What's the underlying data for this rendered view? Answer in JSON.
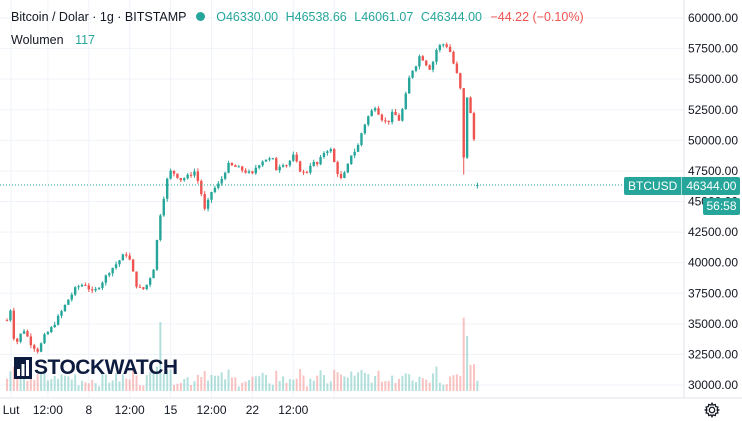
{
  "legend": {
    "title": "Bitcoin / Dolar · 1g · BITSTAMP",
    "open": "O46330.00",
    "high": "H46538.66",
    "low": "L46061.07",
    "close": "C46344.00",
    "change": "−44.22 (−0.10%)",
    "volume_label": "Wolumen",
    "volume_value": "117"
  },
  "price_badge": {
    "symbol": "BTCUSD",
    "price": "46344.00",
    "countdown": "56:58"
  },
  "logo": {
    "text": "STOCKWATCH"
  },
  "icons": {
    "settings": "gear-icon",
    "status": "green-dot-icon",
    "logo": "stockwatch-logo-icon"
  },
  "colors": {
    "up": "#26a69a",
    "down": "#ef5350",
    "last_price": "#26a69a"
  },
  "chart_data": {
    "type": "candlestick",
    "title": "Bitcoin / Dolar · 1g · BITSTAMP",
    "ylim": [
      29500,
      61000
    ],
    "y_ticks": [
      30000,
      32500,
      35000,
      37500,
      40000,
      42500,
      45000,
      47500,
      50000,
      52500,
      55000,
      57500,
      60000
    ],
    "y_tick_labels": [
      "30000.00",
      "32500.00",
      "35000.00",
      "37500.00",
      "40000.00",
      "42500.00",
      "45000.00",
      "47500.00",
      "50000.00",
      "52500.00",
      "55000.00",
      "57500.00",
      "60000.00"
    ],
    "x_ticks": [
      0.05,
      0.5,
      1,
      1.5,
      2,
      2.5,
      3,
      3.5,
      4
    ],
    "x_tick_labels": [
      "Lut",
      "12:00",
      "8",
      "12:00",
      "15",
      "12:00",
      "22",
      "12:00",
      ""
    ],
    "last_price": 46344,
    "grid": true,
    "price_path": [
      [
        0.0,
        35300
      ],
      [
        0.02,
        38500
      ],
      [
        0.06,
        34200
      ],
      [
        0.12,
        33500
      ],
      [
        0.2,
        34600
      ],
      [
        0.3,
        33300
      ],
      [
        0.38,
        32800
      ],
      [
        0.46,
        34000
      ],
      [
        0.55,
        34700
      ],
      [
        0.65,
        35800
      ],
      [
        0.75,
        37000
      ],
      [
        0.85,
        38000
      ],
      [
        0.95,
        38300
      ],
      [
        1.05,
        37500
      ],
      [
        1.15,
        38300
      ],
      [
        1.25,
        39300
      ],
      [
        1.35,
        40000
      ],
      [
        1.45,
        40800
      ],
      [
        1.5,
        40200
      ],
      [
        1.58,
        38200
      ],
      [
        1.65,
        37700
      ],
      [
        1.72,
        38300
      ],
      [
        1.8,
        39700
      ],
      [
        1.86,
        43500
      ],
      [
        1.92,
        45500
      ],
      [
        1.98,
        47500
      ],
      [
        2.05,
        47300
      ],
      [
        2.12,
        46800
      ],
      [
        2.2,
        47000
      ],
      [
        2.3,
        47500
      ],
      [
        2.37,
        45800
      ],
      [
        2.42,
        44200
      ],
      [
        2.5,
        45800
      ],
      [
        2.6,
        46500
      ],
      [
        2.7,
        48000
      ],
      [
        2.8,
        47800
      ],
      [
        2.9,
        47500
      ],
      [
        3.0,
        47200
      ],
      [
        3.05,
        47900
      ],
      [
        3.15,
        48500
      ],
      [
        3.25,
        48400
      ],
      [
        3.3,
        47500
      ],
      [
        3.35,
        48200
      ],
      [
        3.42,
        48000
      ],
      [
        3.5,
        48700
      ],
      [
        3.58,
        47600
      ],
      [
        3.65,
        47200
      ],
      [
        3.72,
        48200
      ],
      [
        3.8,
        48000
      ],
      [
        3.87,
        49000
      ],
      [
        3.95,
        49400
      ],
      [
        4.02,
        47700
      ],
      [
        4.08,
        46800
      ],
      [
        4.15,
        47500
      ],
      [
        4.2,
        48800
      ],
      [
        4.28,
        49300
      ],
      [
        4.35,
        51000
      ],
      [
        4.42,
        52000
      ],
      [
        4.5,
        52800
      ],
      [
        4.58,
        51800
      ],
      [
        4.65,
        51400
      ],
      [
        4.72,
        52300
      ],
      [
        4.8,
        51600
      ],
      [
        4.87,
        53500
      ],
      [
        4.93,
        55500
      ],
      [
        5.0,
        56200
      ],
      [
        5.05,
        57000
      ],
      [
        5.12,
        56300
      ],
      [
        5.18,
        55800
      ],
      [
        5.25,
        57400
      ],
      [
        5.3,
        57800
      ],
      [
        5.36,
        57900
      ],
      [
        5.42,
        57200
      ],
      [
        5.47,
        56000
      ],
      [
        5.52,
        55000
      ],
      [
        5.56,
        53500
      ],
      [
        5.58,
        47700
      ],
      [
        5.6,
        52500
      ],
      [
        5.63,
        53800
      ],
      [
        5.67,
        52000
      ],
      [
        5.71,
        50000
      ],
      [
        5.73,
        47800
      ],
      [
        5.75,
        46344
      ]
    ],
    "volume_spikes": [
      [
        1.86,
        3100
      ],
      [
        5.58,
        3300
      ],
      [
        5.25,
        1100
      ]
    ],
    "volume_axis_bottom": 30000
  }
}
